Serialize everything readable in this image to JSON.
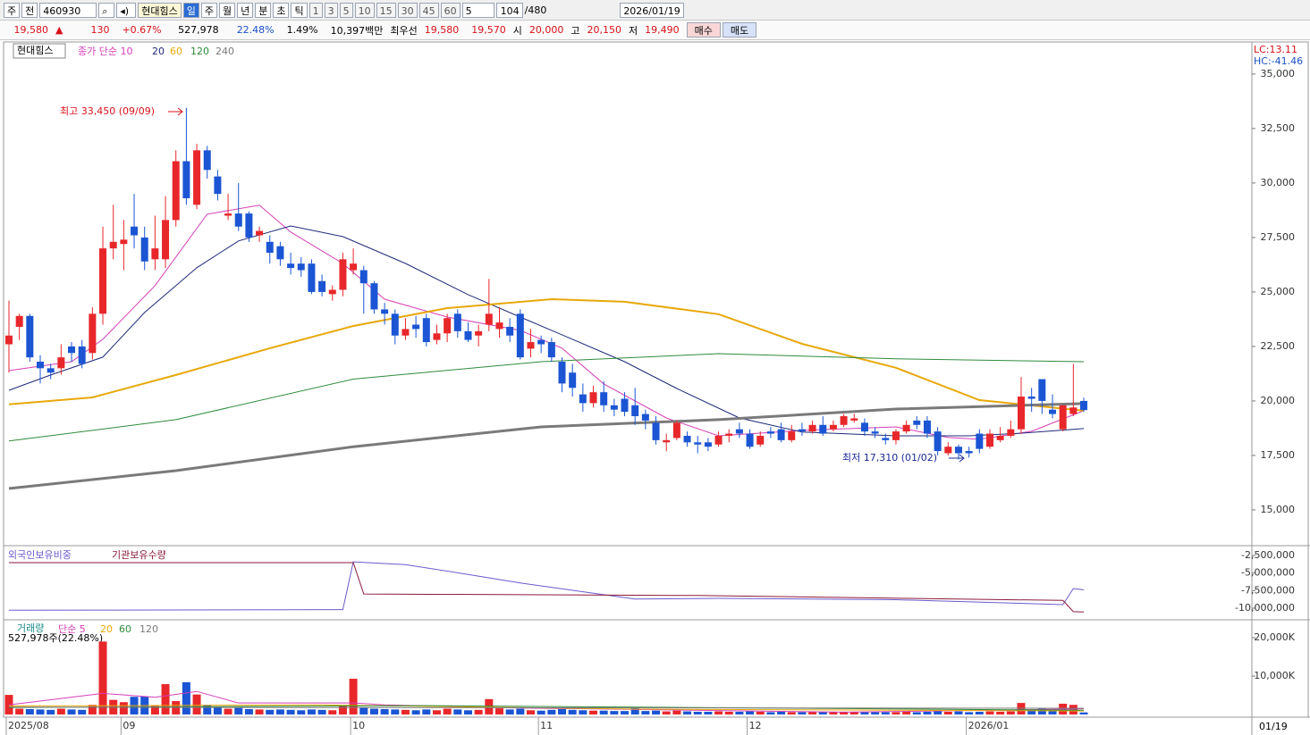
{
  "toolbar": {
    "period_buttons": [
      "주",
      "전"
    ],
    "code": "460930",
    "name": "현대힘스",
    "intervals": [
      "일",
      "주",
      "월",
      "년",
      "분",
      "초",
      "틱"
    ],
    "minutes": [
      "1",
      "3",
      "5",
      "10",
      "15",
      "30",
      "45",
      "60"
    ],
    "step": "5",
    "count": "104",
    "total": "/480",
    "date": "2026/01/19"
  },
  "quote": {
    "price": "19,580",
    "arrow": "▲",
    "change": "130",
    "change_pct": "+0.67%",
    "volume": "527,978",
    "turnover": "22.48%",
    "ratio": "1.49%",
    "amount": "10,397백만",
    "best_label": "최우선",
    "ask": "19,580",
    "bid": "19,570",
    "open_label": "시",
    "open": "20,000",
    "high_label": "고",
    "high": "20,150",
    "low_label": "저",
    "low": "19,490",
    "buy": "매수",
    "sell": "매도"
  },
  "chart_data": [
    {
      "type": "candlestick",
      "label": "현대힘스",
      "lc": "LC:13.11",
      "hc": "HC:-41.46",
      "up_color": "#e8272b",
      "down_color": "#1b55d4",
      "annotations": [
        "최고 33,450 (09/09)",
        "최저 17,310 (01/02)"
      ],
      "ylim": [
        13400,
        36430
      ],
      "yticks": [
        {
          "value": 15000,
          "label": "15,000"
        },
        {
          "value": 17500,
          "label": "17,500"
        },
        {
          "value": 20000,
          "label": "20,000"
        },
        {
          "value": 22500,
          "label": "22,500"
        },
        {
          "value": 25000,
          "label": "25,000"
        },
        {
          "value": 27500,
          "label": "27,500"
        },
        {
          "value": 30000,
          "label": "30,000"
        },
        {
          "value": 32500,
          "label": "32,500"
        },
        {
          "value": 35000,
          "label": "35,000"
        }
      ],
      "candles": [
        [
          22600,
          24600,
          21300,
          23000
        ],
        [
          23400,
          24000,
          22800,
          23900
        ],
        [
          23900,
          24000,
          21800,
          22000
        ],
        [
          21800,
          22100,
          20800,
          21500
        ],
        [
          21500,
          21700,
          21000,
          21300
        ],
        [
          21500,
          22600,
          21200,
          22000
        ],
        [
          22500,
          22700,
          21800,
          22200
        ],
        [
          22500,
          22800,
          21500,
          21700
        ],
        [
          22200,
          24300,
          21900,
          24000
        ],
        [
          24000,
          28000,
          23500,
          27000
        ],
        [
          27000,
          29000,
          26500,
          27300
        ],
        [
          27200,
          28300,
          26000,
          27400
        ],
        [
          28000,
          29500,
          27000,
          27600
        ],
        [
          27500,
          28000,
          26000,
          26400
        ],
        [
          26500,
          28500,
          26000,
          27000
        ],
        [
          26500,
          29400,
          26100,
          28300
        ],
        [
          28300,
          31500,
          28000,
          31000
        ],
        [
          31000,
          33450,
          29000,
          29300
        ],
        [
          29000,
          31800,
          28800,
          31500
        ],
        [
          31500,
          31700,
          30200,
          30600
        ],
        [
          30300,
          30600,
          29200,
          29500
        ],
        [
          28500,
          29500,
          28300,
          28600
        ],
        [
          28600,
          30000,
          27800,
          28000
        ],
        [
          28600,
          28700,
          27300,
          27500
        ],
        [
          27600,
          28000,
          27300,
          27800
        ],
        [
          27300,
          27600,
          26300,
          26800
        ],
        [
          27100,
          27300,
          26200,
          26500
        ],
        [
          26300,
          26800,
          25800,
          26100
        ],
        [
          26300,
          26600,
          25700,
          26000
        ],
        [
          26300,
          26500,
          24900,
          25000
        ],
        [
          25500,
          25800,
          24800,
          25000
        ],
        [
          24900,
          25300,
          24600,
          25100
        ],
        [
          25100,
          26800,
          24800,
          26500
        ],
        [
          26000,
          27000,
          25800,
          26300
        ],
        [
          26000,
          26200,
          24000,
          25400
        ],
        [
          25400,
          25500,
          24000,
          24200
        ],
        [
          24200,
          24500,
          23500,
          24000
        ],
        [
          24000,
          24200,
          22600,
          23000
        ],
        [
          23000,
          23800,
          22800,
          23300
        ],
        [
          23500,
          23900,
          22900,
          23300
        ],
        [
          23800,
          24000,
          22500,
          22700
        ],
        [
          22800,
          23500,
          22600,
          23100
        ],
        [
          23100,
          24000,
          22700,
          23800
        ],
        [
          24000,
          24200,
          22900,
          23200
        ],
        [
          23200,
          23600,
          22700,
          22800
        ],
        [
          23000,
          23500,
          22500,
          23200
        ],
        [
          23500,
          25600,
          23200,
          24000
        ],
        [
          23300,
          24300,
          22900,
          23600
        ],
        [
          23400,
          23800,
          22700,
          23000
        ],
        [
          24000,
          24200,
          21900,
          22000
        ],
        [
          22400,
          23300,
          22000,
          22700
        ],
        [
          22800,
          23000,
          22200,
          22600
        ],
        [
          22700,
          22900,
          21800,
          22000
        ],
        [
          21800,
          22000,
          20400,
          20800
        ],
        [
          21300,
          21700,
          20200,
          20600
        ],
        [
          20300,
          20800,
          19500,
          19900
        ],
        [
          19900,
          20700,
          19700,
          20400
        ],
        [
          20400,
          20900,
          19500,
          19800
        ],
        [
          19800,
          20100,
          19300,
          19600
        ],
        [
          20100,
          20400,
          19300,
          19500
        ],
        [
          19800,
          20600,
          18900,
          19300
        ],
        [
          19400,
          19600,
          18700,
          19100
        ],
        [
          19000,
          19300,
          18000,
          18200
        ],
        [
          18100,
          18500,
          17700,
          18200
        ],
        [
          18300,
          19100,
          18200,
          19000
        ],
        [
          18400,
          18600,
          17900,
          18100
        ],
        [
          18100,
          18400,
          17600,
          18000
        ],
        [
          18100,
          18300,
          17700,
          17900
        ],
        [
          18000,
          18600,
          17900,
          18400
        ],
        [
          18400,
          18700,
          18100,
          18500
        ],
        [
          18700,
          19000,
          18300,
          18500
        ],
        [
          18500,
          18700,
          17800,
          17900
        ],
        [
          18000,
          18600,
          17900,
          18400
        ],
        [
          18600,
          18800,
          18300,
          18500
        ],
        [
          18700,
          19000,
          18100,
          18200
        ],
        [
          18200,
          18900,
          18100,
          18600
        ],
        [
          18700,
          19000,
          18400,
          18600
        ],
        [
          18600,
          19100,
          18500,
          18900
        ],
        [
          18900,
          19300,
          18400,
          18500
        ],
        [
          18700,
          19100,
          18600,
          18900
        ],
        [
          18900,
          19400,
          18800,
          19300
        ],
        [
          19100,
          19400,
          19000,
          19200
        ],
        [
          19000,
          19200,
          18400,
          18600
        ],
        [
          18600,
          18800,
          18300,
          18500
        ],
        [
          18300,
          18500,
          18000,
          18200
        ],
        [
          18200,
          18700,
          18000,
          18600
        ],
        [
          18600,
          19100,
          18500,
          18900
        ],
        [
          19100,
          19300,
          18700,
          18900
        ],
        [
          19100,
          19300,
          18300,
          18500
        ],
        [
          18600,
          18800,
          17500,
          17700
        ],
        [
          17600,
          18100,
          17500,
          17900
        ],
        [
          17900,
          18000,
          17310,
          17600
        ],
        [
          17700,
          17900,
          17400,
          17600
        ],
        [
          18500,
          18700,
          17600,
          17800
        ],
        [
          17900,
          18700,
          17800,
          18500
        ],
        [
          18200,
          18800,
          18100,
          18400
        ],
        [
          18400,
          19100,
          18300,
          18700
        ],
        [
          18700,
          21100,
          18500,
          20200
        ],
        [
          20200,
          20600,
          19500,
          20100
        ],
        [
          21000,
          21000,
          19400,
          20000
        ],
        [
          19600,
          20300,
          19200,
          19400
        ],
        [
          18700,
          19800,
          18600,
          19800
        ],
        [
          19400,
          21700,
          19300,
          19700
        ],
        [
          20000,
          20150,
          19490,
          19580
        ]
      ],
      "series": [
        {
          "name": "종가 단순 10",
          "color": "#d63fb7",
          "width": 1,
          "x": [
            0,
            6,
            9,
            14,
            19,
            24,
            27,
            32,
            36,
            42,
            49,
            53,
            57,
            63,
            68,
            76,
            85,
            90,
            93,
            98,
            103
          ],
          "values": [
            21390,
            21800,
            22830,
            25290,
            28570,
            28980,
            27750,
            26310,
            24670,
            23850,
            23240,
            22420,
            20780,
            19220,
            18400,
            18650,
            18810,
            18320,
            18240,
            18610,
            19550
          ]
        },
        {
          "name": "20",
          "color": "#1f2a7a",
          "width": 1,
          "x": [
            0,
            4,
            9,
            13,
            18,
            22,
            27,
            32,
            38,
            44,
            49,
            54,
            59,
            64,
            70,
            76,
            85,
            92,
            97,
            103
          ],
          "values": [
            20490,
            21190,
            22010,
            24060,
            26110,
            27340,
            28030,
            27540,
            26310,
            24880,
            23850,
            22830,
            21800,
            20570,
            19220,
            18570,
            18400,
            18400,
            18520,
            18730
          ]
        },
        {
          "name": "60",
          "color": "#e8a80a",
          "width": 2,
          "x": [
            0,
            8,
            16,
            25,
            33,
            42,
            52,
            59,
            68,
            76,
            85,
            93,
            103
          ],
          "values": [
            19840,
            20160,
            21190,
            22420,
            23440,
            24260,
            24670,
            24550,
            23980,
            22620,
            21520,
            20040,
            19550
          ]
        },
        {
          "name": "120",
          "color": "#2e8b3a",
          "width": 1,
          "x": [
            0,
            16,
            33,
            51,
            68,
            85,
            103
          ],
          "values": [
            18160,
            19140,
            21000,
            21800,
            22170,
            21930,
            21800
          ]
        },
        {
          "name": "240",
          "color": "#7a7a7a",
          "width": 3,
          "x": [
            0,
            16,
            33,
            51,
            68,
            85,
            103
          ],
          "values": [
            15980,
            16800,
            17900,
            18810,
            19140,
            19630,
            19880
          ]
        }
      ]
    },
    {
      "type": "line",
      "ylim": [
        -11400000,
        -1360000
      ],
      "yticks": [
        {
          "value": -2500000,
          "label": "-2,500,000"
        },
        {
          "value": -5000000,
          "label": "-5,000,000"
        },
        {
          "value": -7500000,
          "label": "-7,500,000"
        },
        {
          "value": -10000000,
          "label": "-10,000,000"
        }
      ],
      "series": [
        {
          "name": "외국인보유비중",
          "color": "#6a5acd",
          "x": [
            0,
            32,
            33,
            38,
            44,
            49,
            60,
            68,
            85,
            101,
            102,
            103
          ],
          "values": [
            -10300000,
            -10200000,
            -3400000,
            -3800000,
            -5200000,
            -6400000,
            -8700000,
            -8600000,
            -8800000,
            -9500000,
            -7200000,
            -7400000
          ]
        },
        {
          "name": "기관보유수량",
          "color": "#8b1a3a",
          "x": [
            0,
            33,
            34,
            66,
            101,
            102,
            103
          ],
          "values": [
            -3520000,
            -3520000,
            -7980000,
            -8200000,
            -8900000,
            -10500000,
            -10550000
          ]
        }
      ]
    },
    {
      "type": "volume",
      "name": "거래량",
      "info": "527,978주(22.48%)",
      "ylim": [
        0,
        24200
      ],
      "yticks": [
        {
          "value": 10000,
          "label": "10,000K"
        },
        {
          "value": 20000,
          "label": "20,000K"
        }
      ],
      "xticks": [
        {
          "value": 0,
          "label": "2025/08"
        },
        {
          "value": 11,
          "label": "09"
        },
        {
          "value": 33,
          "label": "10"
        },
        {
          "value": 51,
          "label": "11"
        },
        {
          "value": 71,
          "label": "12"
        },
        {
          "value": 92,
          "label": "2026/01"
        }
      ],
      "last_date": "01/19",
      "values": [
        5100,
        1500,
        1400,
        1300,
        1200,
        1500,
        1300,
        1200,
        2500,
        19000,
        3800,
        3200,
        4600,
        4700,
        2200,
        7900,
        3500,
        8400,
        5200,
        2500,
        1800,
        1500,
        1700,
        1400,
        1300,
        1200,
        1300,
        1200,
        1100,
        1300,
        1200,
        1100,
        2200,
        9300,
        1800,
        1500,
        1400,
        1300,
        1200,
        1100,
        1300,
        1100,
        1500,
        1300,
        1100,
        1200,
        4000,
        1600,
        1300,
        1500,
        1100,
        1000,
        1200,
        1400,
        1200,
        1100,
        1000,
        1000,
        900,
        900,
        1800,
        900,
        1000,
        800,
        1000,
        800,
        700,
        700,
        800,
        700,
        700,
        800,
        700,
        600,
        700,
        600,
        600,
        700,
        600,
        600,
        700,
        600,
        600,
        600,
        600,
        600,
        700,
        600,
        700,
        900,
        700,
        800,
        600,
        700,
        800,
        700,
        800,
        3000,
        1200,
        1500,
        1000,
        2800,
        2500,
        528
      ],
      "series": [
        {
          "name": "단순 5",
          "color": "#d63fb7",
          "x": [
            0,
            9,
            14,
            18,
            22,
            33,
            36,
            46,
            60,
            80,
            97,
            103
          ],
          "values": [
            2500,
            5500,
            4500,
            6000,
            3000,
            3000,
            2500,
            1800,
            1300,
            600,
            1200,
            1500
          ]
        },
        {
          "name": "20",
          "color": "#e8a80a",
          "x": [
            0,
            30,
            60,
            103
          ],
          "values": [
            2200,
            2500,
            1400,
            900
          ]
        },
        {
          "name": "60",
          "color": "#2e8b3a",
          "x": [
            0,
            40,
            103
          ],
          "values": [
            1800,
            2300,
            1100
          ]
        },
        {
          "name": "120",
          "color": "#7a7a7a",
          "x": [
            0,
            103
          ],
          "values": [
            1900,
            1600
          ]
        }
      ]
    }
  ]
}
